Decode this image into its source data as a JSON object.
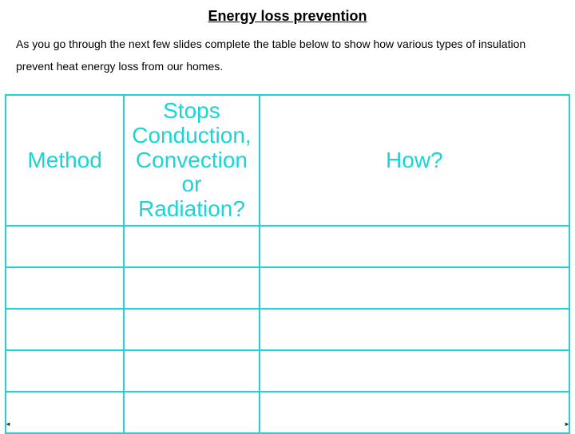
{
  "title": "Energy loss prevention",
  "instruction": "As you go through the next few slides complete the table below to show how various types of insulation prevent heat energy loss from our homes.",
  "table": {
    "border_color": "#19d5d5",
    "header_text_color": "#19d5d5",
    "header_fontsize_pt": 28,
    "col_widths_pct": [
      21,
      24,
      55
    ],
    "headers": [
      "Method",
      "Stops Conduction, Convection or Radiation?",
      "How?"
    ],
    "body_row_count": 5
  },
  "corner_left": "◄",
  "corner_right": "►"
}
